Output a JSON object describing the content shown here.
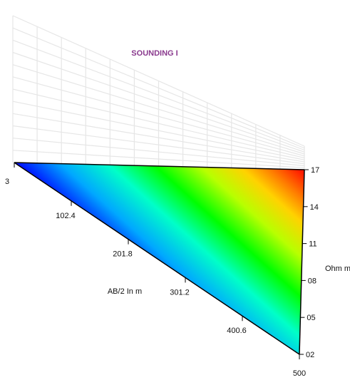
{
  "chart_data": {
    "type": "heatmap",
    "title": "SOUNDING I",
    "xlabel": "AB/2 In m",
    "zlabel": "Ohm m",
    "x_ticks": [
      "3",
      "102.4",
      "201.8",
      "301.2",
      "400.6",
      "500"
    ],
    "x_range": [
      3,
      500
    ],
    "z_ticks": [
      "17",
      "14",
      "11",
      "08",
      "05",
      "02"
    ],
    "z_range": [
      2,
      17
    ],
    "colorscale": [
      "#0000ff",
      "#00aaff",
      "#00ffcc",
      "#00ff00",
      "#ccff00",
      "#ffcc00",
      "#ff6600",
      "#ff0000"
    ],
    "grid": true
  },
  "colors": {
    "title": "#8a3a8e",
    "grid": "#e6e6e6",
    "axis": "#000000"
  }
}
